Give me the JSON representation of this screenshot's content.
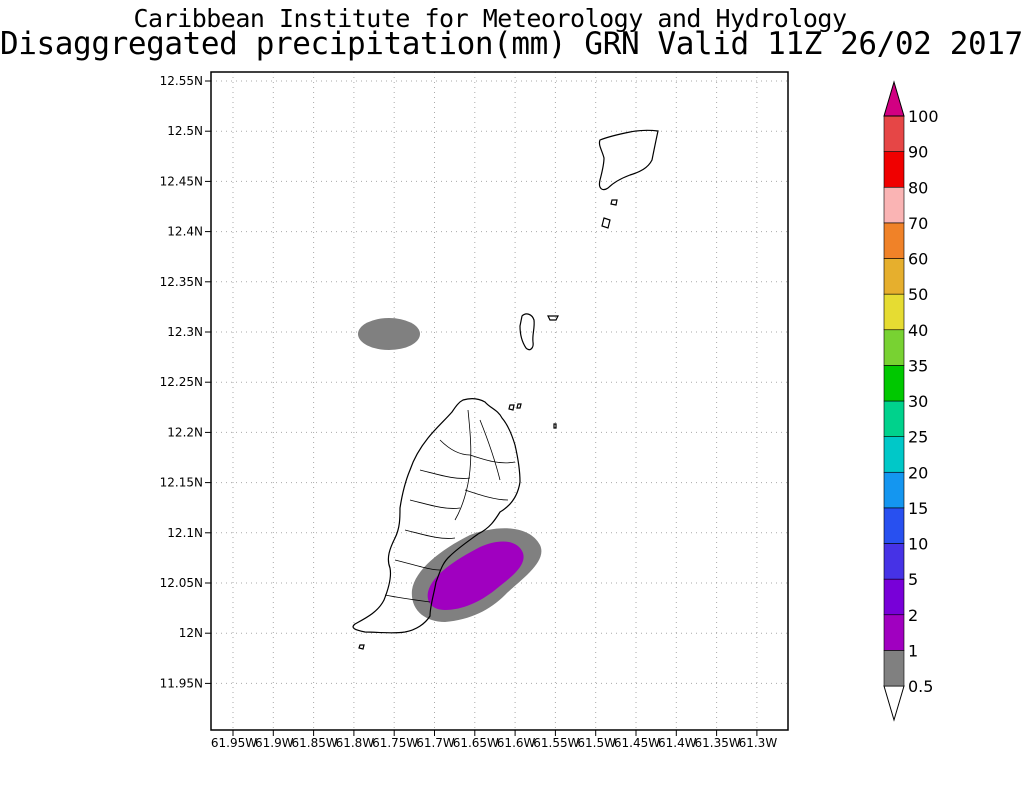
{
  "title": {
    "line1": "Caribbean Institute for Meteorology and Hydrology",
    "line2": "Disaggregated precipitation(mm) GRN Valid 11Z 26/02 2017"
  },
  "axes": {
    "lat_ticks": [
      "12.55N",
      "12.5N",
      "12.45N",
      "12.4N",
      "12.35N",
      "12.3N",
      "12.25N",
      "12.2N",
      "12.15N",
      "12.1N",
      "12.05N",
      "12N",
      "11.95N"
    ],
    "lon_ticks": [
      "61.95W",
      "61.9W",
      "61.85W",
      "61.8W",
      "61.75W",
      "61.7W",
      "61.65W",
      "61.6W",
      "61.55W",
      "61.5W",
      "61.45W",
      "61.4W",
      "61.35W",
      "61.3W"
    ]
  },
  "legend": {
    "labels": [
      "0.5",
      "1",
      "2",
      "5",
      "10",
      "15",
      "20",
      "25",
      "30",
      "35",
      "40",
      "50",
      "60",
      "70",
      "80",
      "90",
      "100"
    ],
    "colors": [
      "#808080",
      "#a000c0",
      "#7800d8",
      "#4632e6",
      "#2850f0",
      "#1496f0",
      "#00c8c8",
      "#00d28c",
      "#00c800",
      "#78d232",
      "#e6dc32",
      "#e6af2d",
      "#f08228",
      "#fab4b4",
      "#f00000",
      "#e64646",
      "#d20082"
    ]
  },
  "map": {
    "extent": {
      "lon_min": -61.97,
      "lon_max": -61.255,
      "lat_min": 11.91,
      "lat_max": 12.57
    },
    "precip_colors": {
      "gray": "#808080",
      "purple": "#a000c0"
    }
  }
}
